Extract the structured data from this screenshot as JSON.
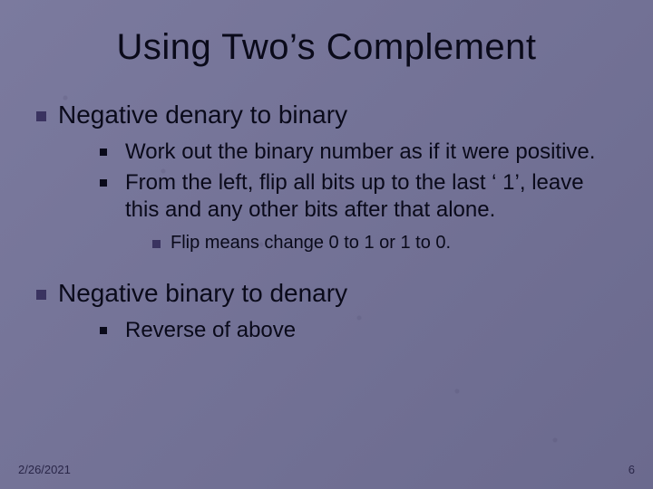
{
  "colors": {
    "background": "#7b7a9e",
    "background_gradient_end": "#6b6a8e",
    "title_color": "#0a0a1a",
    "text_color": "#0a0a1a",
    "bullet_large": "#3a3360",
    "bullet_small": "#0a0a1a",
    "footer_color": "#2a2648"
  },
  "typography": {
    "title_fontsize": 40,
    "h1_fontsize": 28,
    "sub_fontsize": 24,
    "subsub_fontsize": 20,
    "footer_fontsize": 13,
    "font_family": "Arial"
  },
  "title": "Using Two’s Complement",
  "sections": [
    {
      "heading": "Negative denary to binary",
      "items": [
        "Work out the binary number as if it were positive.",
        "From the left, flip all bits up to the last ‘ 1’, leave this and any other bits after that alone."
      ],
      "subitems": [
        "Flip means change 0 to 1 or 1 to 0."
      ]
    },
    {
      "heading": "Negative binary to denary",
      "items": [
        "Reverse of above"
      ],
      "subitems": []
    }
  ],
  "footer": {
    "date": "2/26/2021",
    "page": "6"
  }
}
